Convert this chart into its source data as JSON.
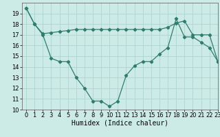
{
  "line1_x": [
    0,
    1,
    2,
    3,
    4,
    5,
    6,
    7,
    8,
    9,
    10,
    11,
    12,
    13,
    14,
    15,
    16,
    17,
    18,
    19,
    20,
    21,
    22,
    23
  ],
  "line1_y": [
    19.5,
    18.0,
    17.0,
    14.8,
    14.5,
    14.5,
    13.0,
    12.0,
    10.8,
    10.8,
    10.3,
    10.8,
    13.2,
    14.1,
    14.5,
    14.5,
    15.2,
    15.8,
    18.5,
    16.8,
    16.8,
    16.3,
    15.8,
    14.5
  ],
  "line2_x": [
    0,
    1,
    2,
    3,
    4,
    5,
    6,
    7,
    8,
    9,
    10,
    11,
    12,
    13,
    14,
    15,
    16,
    17,
    18,
    19,
    20,
    21,
    22,
    23
  ],
  "line2_y": [
    19.5,
    18.0,
    17.1,
    17.2,
    17.3,
    17.4,
    17.5,
    17.5,
    17.5,
    17.5,
    17.5,
    17.5,
    17.5,
    17.5,
    17.5,
    17.5,
    17.5,
    17.7,
    18.1,
    18.3,
    17.0,
    17.0,
    17.0,
    14.5
  ],
  "color": "#2e7d6e",
  "bg_color": "#cceae6",
  "grid_color": "#add4cf",
  "xlabel": "Humidex (Indice chaleur)",
  "ylim": [
    10,
    20
  ],
  "xlim": [
    -0.5,
    23
  ],
  "yticks": [
    10,
    11,
    12,
    13,
    14,
    15,
    16,
    17,
    18,
    19
  ],
  "xticks": [
    0,
    1,
    2,
    3,
    4,
    5,
    6,
    7,
    8,
    9,
    10,
    11,
    12,
    13,
    14,
    15,
    16,
    17,
    18,
    19,
    20,
    21,
    22,
    23
  ],
  "xlabel_fontsize": 7,
  "tick_fontsize": 6,
  "linewidth": 0.9,
  "markersize": 2.2
}
